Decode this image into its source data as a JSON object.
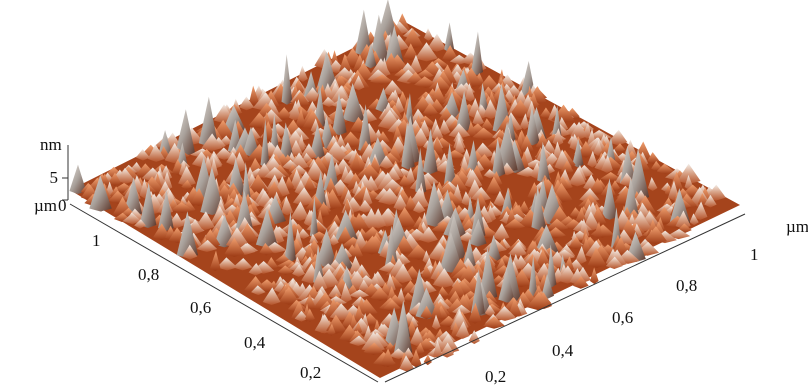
{
  "axes": {
    "z": {
      "unit": "nm",
      "ticks": [
        "5",
        "0"
      ]
    },
    "left": {
      "unit": "µm",
      "ticks": [
        "1",
        "0,8",
        "0,6",
        "0,4",
        "0,2"
      ]
    },
    "right": {
      "unit": "µm",
      "ticks": [
        "1",
        "0,8",
        "0,6",
        "0,4",
        "0,2"
      ]
    }
  }
}
